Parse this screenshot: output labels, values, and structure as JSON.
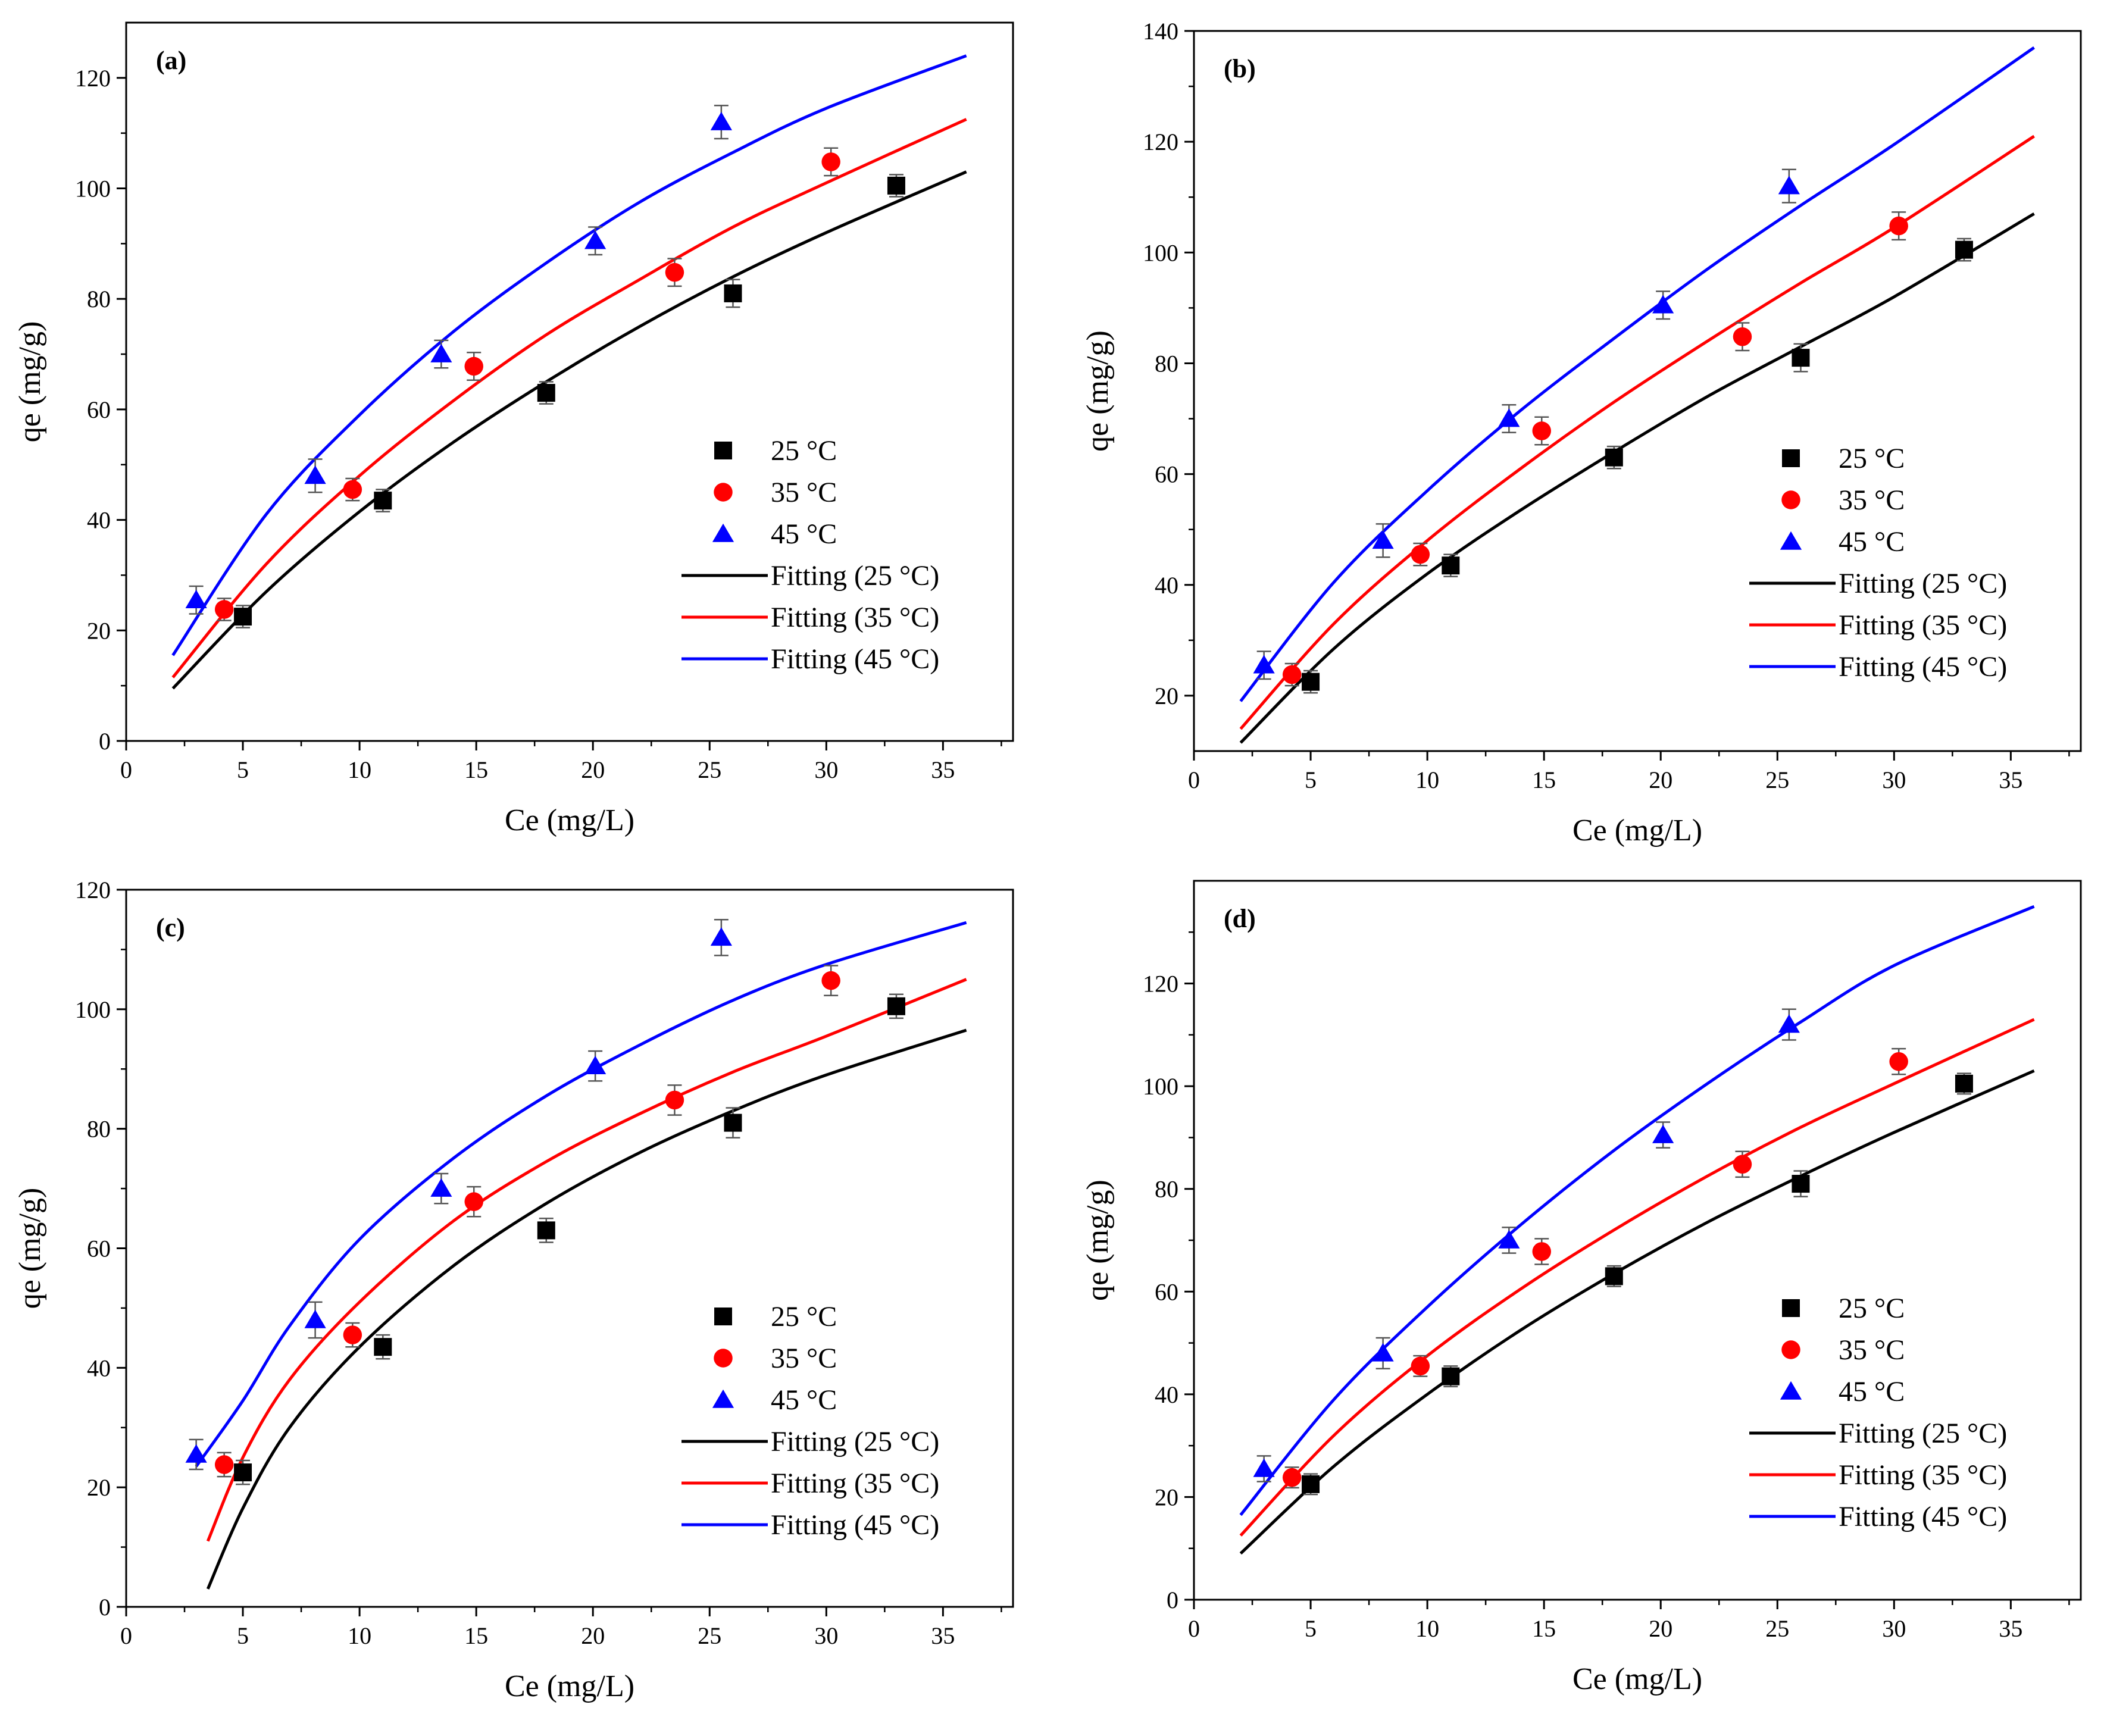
{
  "legend": {
    "entries": [
      {
        "label": "25 °C",
        "kind": "marker",
        "symbol": "square",
        "color": "#000000"
      },
      {
        "label": "35 °C",
        "kind": "marker",
        "symbol": "circle",
        "color": "#ff0000"
      },
      {
        "label": "45 °C",
        "kind": "marker",
        "symbol": "triangle",
        "color": "#0000ff"
      },
      {
        "label": "Fitting (25 °C)",
        "kind": "line",
        "color": "#000000"
      },
      {
        "label": "Fitting (35 °C)",
        "kind": "line",
        "color": "#ff0000"
      },
      {
        "label": "Fitting (45 °C)",
        "kind": "line",
        "color": "#0000ff"
      }
    ],
    "placement": "center-right"
  },
  "chart_data": [
    {
      "panel": "(a)",
      "type": "scatter",
      "xlabel": "Ce (mg/L)",
      "ylabel": "qe (mg/g)",
      "xlim": [
        0,
        38
      ],
      "ylim": [
        0,
        130
      ],
      "xticks": [
        0,
        5,
        10,
        15,
        20,
        25,
        30,
        35
      ],
      "yticks": [
        0,
        20,
        40,
        60,
        80,
        100,
        120
      ],
      "grid": false,
      "series": [
        {
          "name": "25 °C",
          "symbol": "square",
          "color": "#000000",
          "x": [
            5.0,
            11.0,
            18.0,
            26.0,
            33.0
          ],
          "y": [
            22.5,
            43.5,
            63.0,
            81.0,
            100.5
          ],
          "err": [
            2,
            2,
            2,
            2.5,
            2
          ]
        },
        {
          "name": "35 °C",
          "symbol": "circle",
          "color": "#ff0000",
          "x": [
            4.2,
            9.7,
            14.9,
            23.5,
            30.2
          ],
          "y": [
            23.8,
            45.5,
            67.8,
            84.8,
            104.8
          ],
          "err": [
            2,
            2,
            2.5,
            2.5,
            2.5
          ]
        },
        {
          "name": "45 °C",
          "symbol": "triangle",
          "color": "#0000ff",
          "x": [
            3.0,
            8.1,
            13.5,
            20.1,
            25.5
          ],
          "y": [
            25.5,
            48.0,
            70.0,
            90.5,
            112.0
          ],
          "err": [
            2.5,
            3,
            2.5,
            2.5,
            3
          ]
        }
      ],
      "fits": [
        {
          "name": "Fitting (25 °C)",
          "color": "#000000",
          "x": [
            2,
            6,
            10,
            14,
            18,
            22,
            26,
            30,
            36
          ],
          "y": [
            9.5,
            27.0,
            41.5,
            54.0,
            65.0,
            75.0,
            84.0,
            92.0,
            103.0
          ]
        },
        {
          "name": "Fitting (35 °C)",
          "color": "#ff0000",
          "x": [
            2,
            6,
            10,
            14,
            18,
            22,
            26,
            30,
            36
          ],
          "y": [
            11.5,
            32.0,
            48.0,
            61.5,
            73.5,
            83.5,
            93.0,
            101.0,
            112.5
          ]
        },
        {
          "name": "Fitting (45 °C)",
          "color": "#0000ff",
          "x": [
            2,
            6,
            10,
            14,
            18,
            22,
            26,
            30,
            36
          ],
          "y": [
            15.5,
            41.0,
            59.0,
            74.0,
            86.5,
            97.5,
            106.5,
            114.5,
            124.0
          ]
        }
      ]
    },
    {
      "panel": "(b)",
      "type": "scatter",
      "xlabel": "Ce (mg/L)",
      "ylabel": "qe (mg/g)",
      "xlim": [
        0,
        38
      ],
      "ylim": [
        10,
        140
      ],
      "xticks": [
        0,
        5,
        10,
        15,
        20,
        25,
        30,
        35
      ],
      "yticks": [
        20,
        40,
        60,
        80,
        100,
        120,
        140
      ],
      "grid": false,
      "series": [
        {
          "name": "25 °C",
          "symbol": "square",
          "color": "#000000",
          "x": [
            5.0,
            11.0,
            18.0,
            26.0,
            33.0
          ],
          "y": [
            22.5,
            43.5,
            63.0,
            81.0,
            100.5
          ],
          "err": [
            2,
            2,
            2,
            2.5,
            2
          ]
        },
        {
          "name": "35 °C",
          "symbol": "circle",
          "color": "#ff0000",
          "x": [
            4.2,
            9.7,
            14.9,
            23.5,
            30.2
          ],
          "y": [
            23.8,
            45.5,
            67.8,
            84.8,
            104.8
          ],
          "err": [
            2,
            2,
            2.5,
            2.5,
            2.5
          ]
        },
        {
          "name": "45 °C",
          "symbol": "triangle",
          "color": "#0000ff",
          "x": [
            3.0,
            8.1,
            13.5,
            20.1,
            25.5
          ],
          "y": [
            25.5,
            48.0,
            70.0,
            90.5,
            112.0
          ],
          "err": [
            2.5,
            3,
            2.5,
            2.5,
            3
          ]
        }
      ],
      "fits": [
        {
          "name": "Fitting (25 °C)",
          "color": "#000000",
          "x": [
            2,
            6,
            10,
            14,
            18,
            22,
            26,
            30,
            36
          ],
          "y": [
            11.5,
            28.5,
            42.0,
            53.5,
            64.0,
            74.0,
            83.0,
            92.0,
            107.0
          ]
        },
        {
          "name": "Fitting (35 °C)",
          "color": "#ff0000",
          "x": [
            2,
            6,
            10,
            14,
            18,
            22,
            26,
            30,
            36
          ],
          "y": [
            14.0,
            33.0,
            48.0,
            61.0,
            73.0,
            84.0,
            94.5,
            104.5,
            121.0
          ]
        },
        {
          "name": "Fitting (45 °C)",
          "color": "#0000ff",
          "x": [
            2,
            6,
            10,
            14,
            18,
            22,
            26,
            30,
            36
          ],
          "y": [
            19.0,
            40.5,
            57.0,
            71.5,
            84.5,
            97.0,
            108.5,
            119.5,
            137.0
          ]
        }
      ]
    },
    {
      "panel": "(c)",
      "type": "scatter",
      "xlabel": "Ce (mg/L)",
      "ylabel": "qe (mg/g)",
      "xlim": [
        0,
        38
      ],
      "ylim": [
        0,
        120
      ],
      "xticks": [
        0,
        5,
        10,
        15,
        20,
        25,
        30,
        35
      ],
      "yticks": [
        0,
        20,
        40,
        60,
        80,
        100,
        120
      ],
      "grid": false,
      "series": [
        {
          "name": "25 °C",
          "symbol": "square",
          "color": "#000000",
          "x": [
            5.0,
            11.0,
            18.0,
            26.0,
            33.0
          ],
          "y": [
            22.5,
            43.5,
            63.0,
            81.0,
            100.5
          ],
          "err": [
            2,
            2,
            2,
            2.5,
            2
          ]
        },
        {
          "name": "35 °C",
          "symbol": "circle",
          "color": "#ff0000",
          "x": [
            4.2,
            9.7,
            14.9,
            23.5,
            30.2
          ],
          "y": [
            23.8,
            45.5,
            67.8,
            84.8,
            104.8
          ],
          "err": [
            2,
            2,
            2.5,
            2.5,
            2.5
          ]
        },
        {
          "name": "45 °C",
          "symbol": "triangle",
          "color": "#0000ff",
          "x": [
            3.0,
            8.1,
            13.5,
            20.1,
            25.5
          ],
          "y": [
            25.5,
            48.0,
            70.0,
            90.5,
            112.0
          ],
          "err": [
            2.5,
            3,
            2.5,
            2.5,
            3
          ]
        }
      ],
      "fits": [
        {
          "name": "Fitting (25 °C)",
          "color": "#000000",
          "x": [
            3.5,
            5,
            7,
            10,
            14,
            18,
            22,
            26,
            30,
            36
          ],
          "y": [
            3.0,
            16.5,
            30.0,
            43.5,
            57.0,
            67.5,
            76.0,
            83.0,
            89.0,
            96.5
          ]
        },
        {
          "name": "Fitting (35 °C)",
          "color": "#ff0000",
          "x": [
            3.5,
            5,
            7,
            10,
            14,
            18,
            22,
            26,
            30,
            36
          ],
          "y": [
            11.0,
            25.0,
            38.0,
            51.0,
            64.5,
            74.5,
            82.5,
            89.5,
            95.5,
            105.0
          ]
        },
        {
          "name": "Fitting (45 °C)",
          "color": "#0000ff",
          "x": [
            3,
            5,
            7,
            10,
            14,
            18,
            22,
            26,
            30,
            36
          ],
          "y": [
            23.5,
            34.5,
            47.0,
            61.5,
            75.0,
            85.5,
            94.0,
            101.5,
            107.5,
            114.5
          ]
        }
      ]
    },
    {
      "panel": "(d)",
      "type": "scatter",
      "xlabel": "Ce (mg/L)",
      "ylabel": "qe (mg/g)",
      "xlim": [
        0,
        38
      ],
      "ylim": [
        0,
        140
      ],
      "xticks": [
        0,
        5,
        10,
        15,
        20,
        25,
        30,
        35
      ],
      "yticks": [
        0,
        20,
        40,
        60,
        80,
        100,
        120
      ],
      "grid": false,
      "series": [
        {
          "name": "25 °C",
          "symbol": "square",
          "color": "#000000",
          "x": [
            5.0,
            11.0,
            18.0,
            26.0,
            33.0
          ],
          "y": [
            22.5,
            43.5,
            63.0,
            81.0,
            100.5
          ],
          "err": [
            2,
            2,
            2,
            2.5,
            2
          ]
        },
        {
          "name": "35 °C",
          "symbol": "circle",
          "color": "#ff0000",
          "x": [
            4.2,
            9.7,
            14.9,
            23.5,
            30.2
          ],
          "y": [
            23.8,
            45.5,
            67.8,
            84.8,
            104.8
          ],
          "err": [
            2,
            2,
            2.5,
            2.5,
            2.5
          ]
        },
        {
          "name": "45 °C",
          "symbol": "triangle",
          "color": "#0000ff",
          "x": [
            3.0,
            8.1,
            13.5,
            20.1,
            25.5
          ],
          "y": [
            25.5,
            48.0,
            70.0,
            90.5,
            112.0
          ],
          "err": [
            2.5,
            3,
            2.5,
            2.5,
            3
          ]
        }
      ],
      "fits": [
        {
          "name": "Fitting (25 °C)",
          "color": "#000000",
          "x": [
            2,
            6,
            10,
            14,
            18,
            22,
            26,
            30,
            36
          ],
          "y": [
            9.0,
            26.0,
            40.0,
            52.5,
            63.5,
            73.5,
            82.5,
            91.0,
            103.0
          ]
        },
        {
          "name": "Fitting (35 °C)",
          "color": "#ff0000",
          "x": [
            2,
            6,
            10,
            14,
            18,
            22,
            26,
            30,
            36
          ],
          "y": [
            12.5,
            32.0,
            47.5,
            60.5,
            72.0,
            82.5,
            92.0,
            100.5,
            113.0
          ]
        },
        {
          "name": "Fitting (45 °C)",
          "color": "#0000ff",
          "x": [
            2,
            6,
            10,
            14,
            18,
            22,
            26,
            30,
            36
          ],
          "y": [
            16.5,
            39.0,
            57.0,
            73.0,
            87.5,
            100.5,
            112.5,
            123.5,
            135.0
          ]
        }
      ]
    }
  ]
}
